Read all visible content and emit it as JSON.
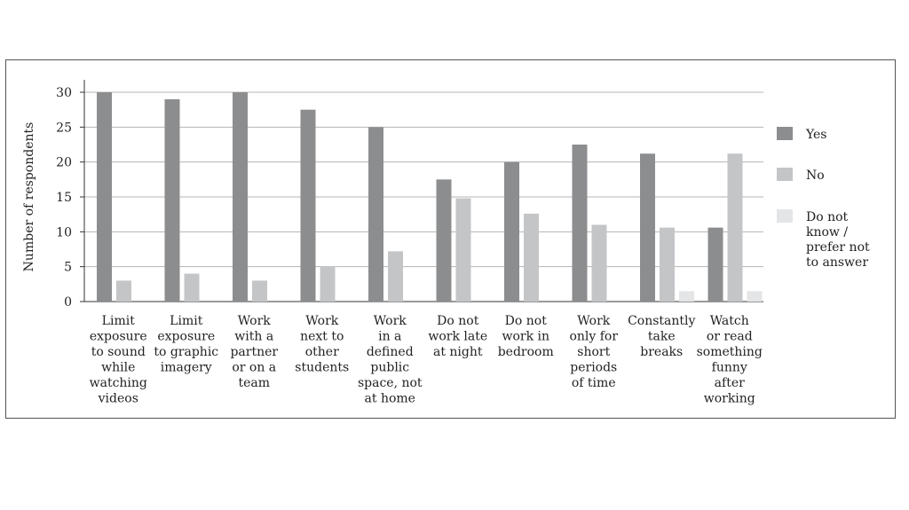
{
  "chart_data": {
    "type": "bar",
    "ylabel": "Number of respondents",
    "ylim": [
      0,
      30
    ],
    "yticks": [
      0,
      5,
      10,
      15,
      20,
      25,
      30
    ],
    "grid": true,
    "legend_position": "right",
    "categories": [
      [
        "Limit",
        "exposure",
        "to sound",
        "while",
        "watching",
        "videos"
      ],
      [
        "Limit",
        "exposure",
        "to graphic",
        "imagery"
      ],
      [
        "Work",
        "with a",
        "partner",
        "or on a",
        "team"
      ],
      [
        "Work",
        "next to",
        "other",
        "students"
      ],
      [
        "Work",
        "in a",
        "defined",
        "public",
        "space, not",
        "at home"
      ],
      [
        "Do not",
        "work late",
        "at night"
      ],
      [
        "Do not",
        "work in",
        "bedroom"
      ],
      [
        "Work",
        "only for",
        "short",
        "periods",
        "of time"
      ],
      [
        "Constantly",
        "take",
        "breaks"
      ],
      [
        "Watch",
        "or read",
        "something",
        "funny",
        "after",
        "working"
      ]
    ],
    "series": [
      {
        "name": "Yes",
        "color": "#8c8d8f",
        "values": [
          30,
          29,
          30,
          27.5,
          25,
          17.5,
          20,
          22.5,
          21.2,
          10.6
        ]
      },
      {
        "name": "No",
        "color": "#c4c5c7",
        "values": [
          3,
          4,
          3,
          5,
          7.2,
          14.8,
          12.6,
          11,
          10.6,
          21.2
        ]
      },
      {
        "name": [
          "Do not",
          "know /",
          "prefer not",
          "to answer"
        ],
        "color": "#e4e5e6",
        "values": [
          0,
          0,
          0,
          0,
          0,
          0,
          0,
          0,
          1.5,
          1.5
        ]
      }
    ]
  }
}
